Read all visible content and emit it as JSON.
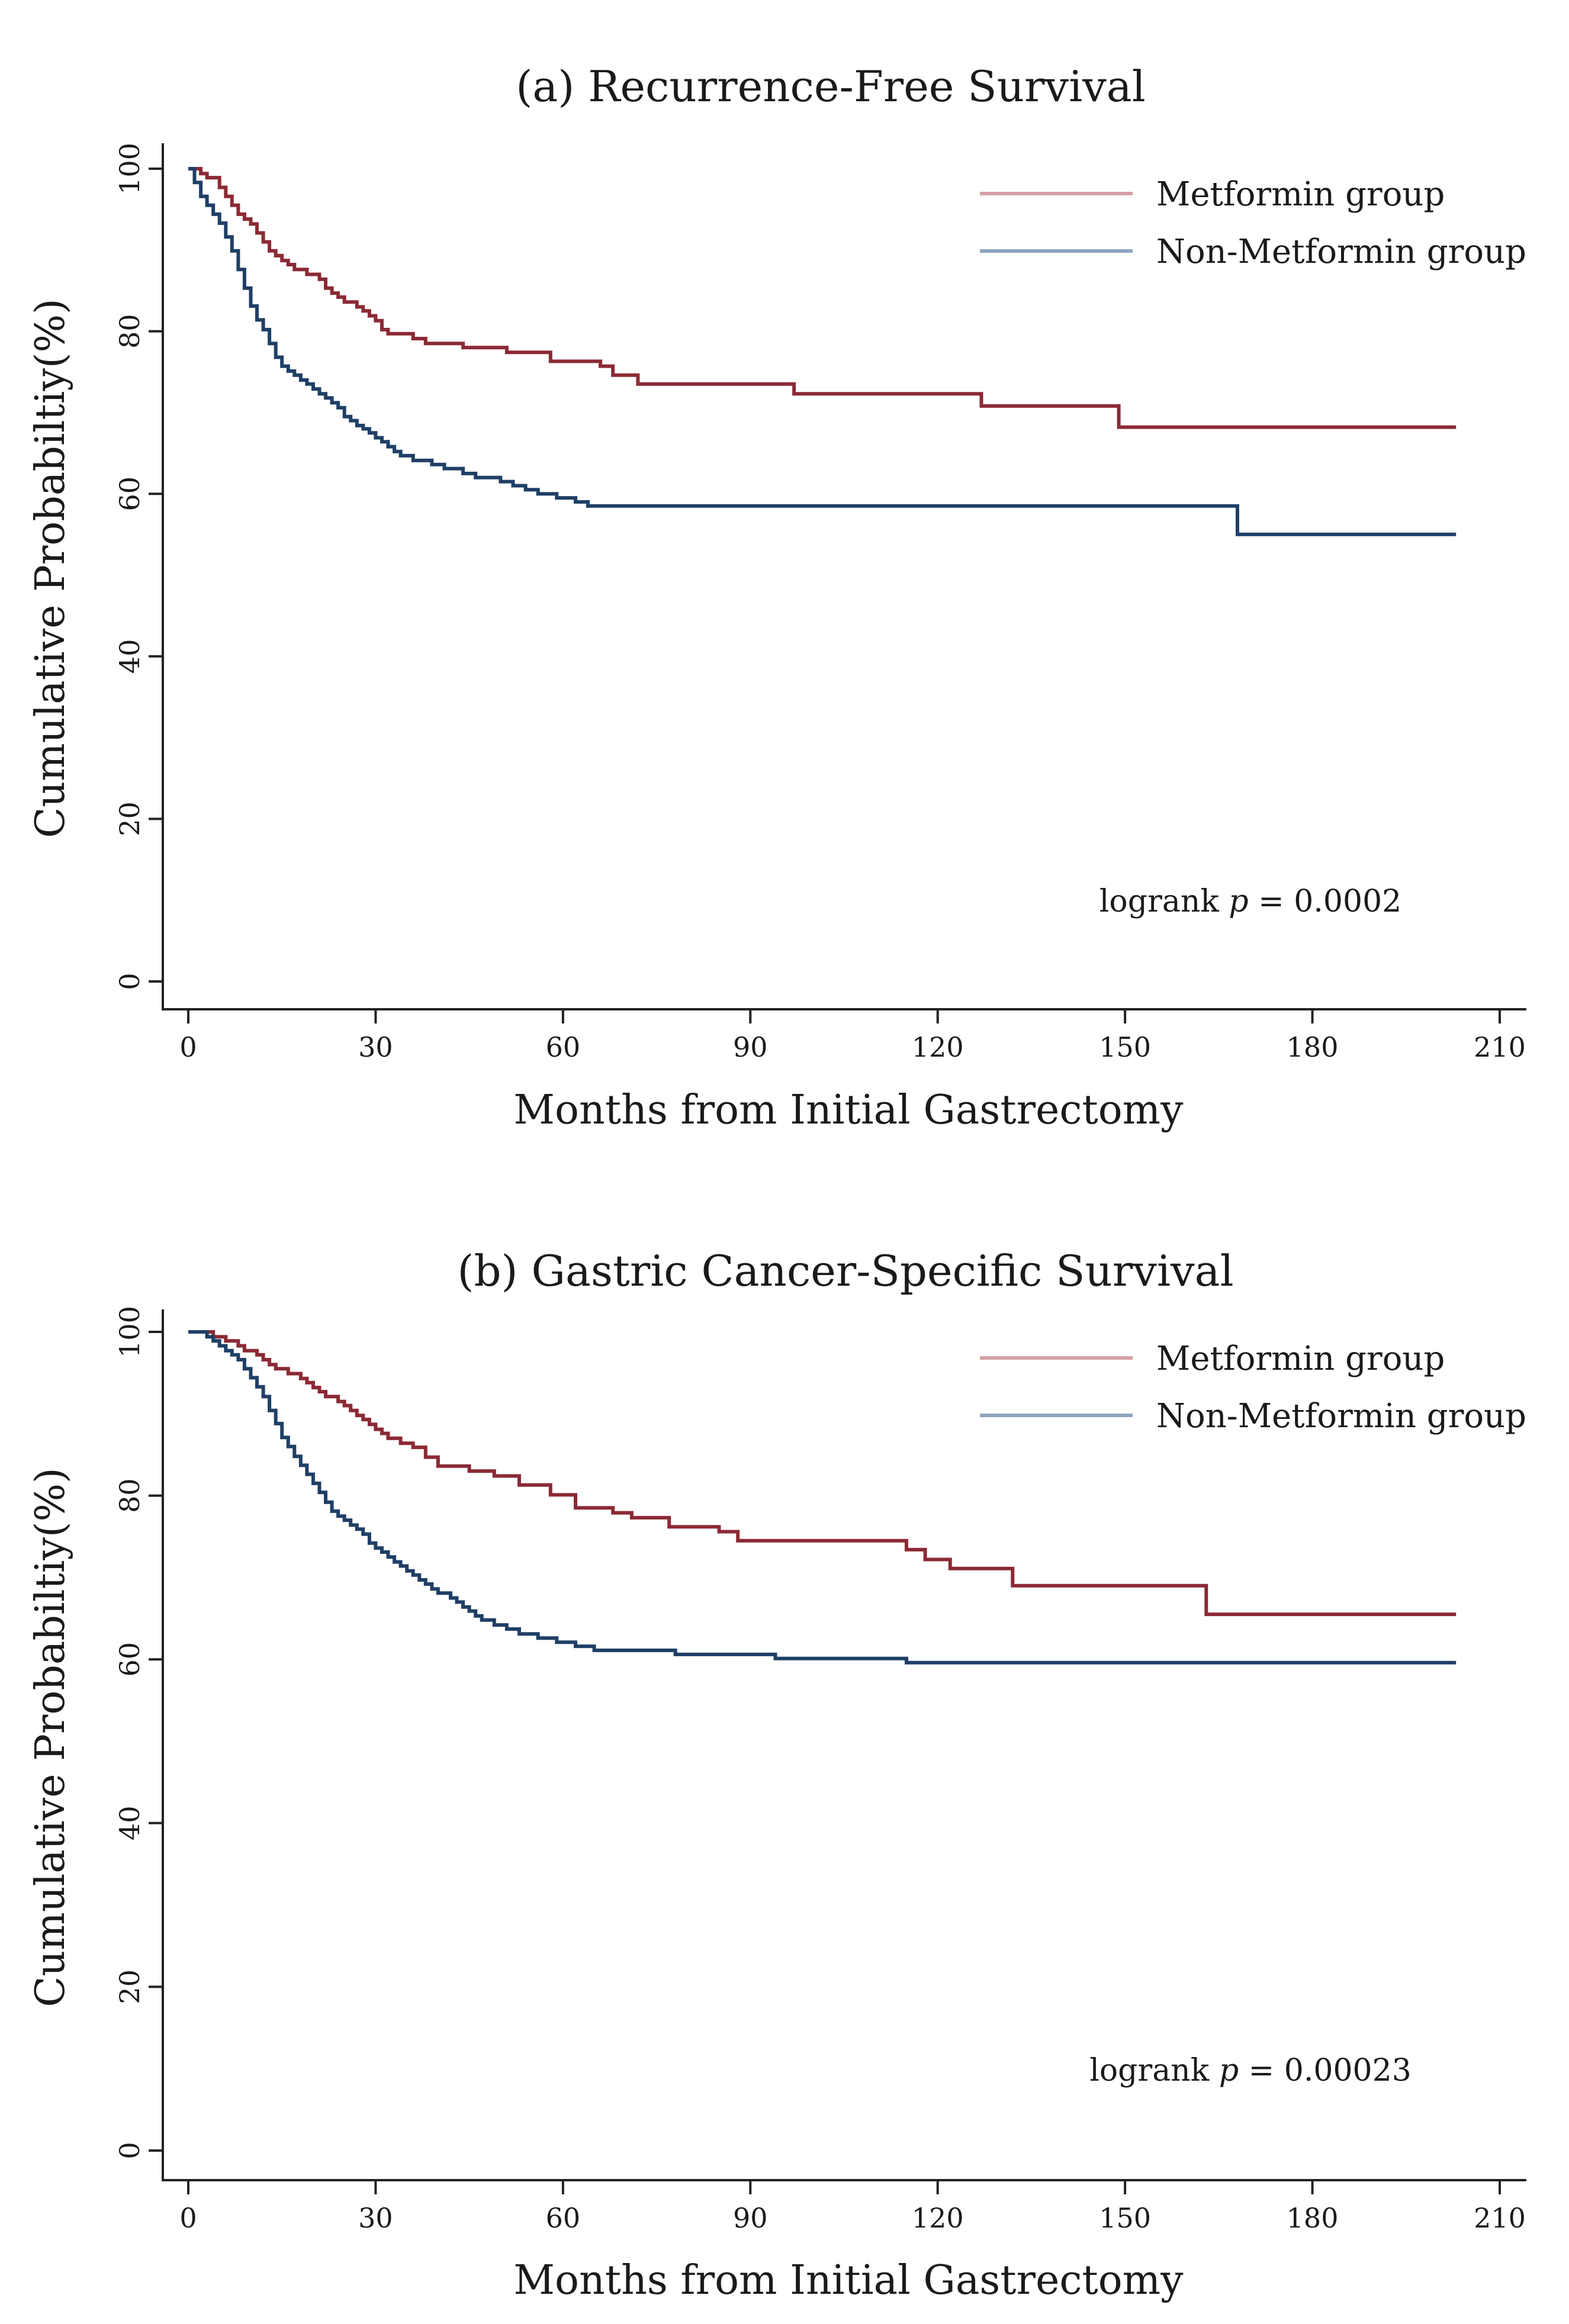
{
  "chart_data": [
    {
      "type": "line",
      "subtype": "kaplan-meier",
      "title": "(a) Recurrence-Free Survival",
      "xlabel": "Months from Initial Gastrectomy",
      "ylabel": "Cumulative Probabiltiy(%)",
      "xlim": [
        0,
        210
      ],
      "ylim": [
        0,
        100
      ],
      "xticks": [
        0,
        30,
        60,
        90,
        120,
        150,
        180,
        210
      ],
      "yticks": [
        0,
        20,
        40,
        60,
        80,
        100
      ],
      "legend_position": "top-right",
      "annotation": {
        "prefix": "logrank ",
        "italic": "p",
        "suffix": " = 0.0002"
      },
      "series": [
        {
          "name": "Metformin group",
          "color": "#8b2a35",
          "legend_color": "#d4a0a6",
          "steps": [
            [
              0,
              100
            ],
            [
              2,
              99.4
            ],
            [
              3,
              98.9
            ],
            [
              5,
              97.7
            ],
            [
              6,
              96.6
            ],
            [
              7,
              95.5
            ],
            [
              8,
              94.4
            ],
            [
              9,
              93.8
            ],
            [
              10,
              93.2
            ],
            [
              11,
              92.1
            ],
            [
              12,
              91
            ],
            [
              13,
              89.9
            ],
            [
              14,
              89.3
            ],
            [
              15,
              88.7
            ],
            [
              16,
              88.2
            ],
            [
              17,
              87.6
            ],
            [
              19,
              87
            ],
            [
              21,
              86.4
            ],
            [
              22,
              85.3
            ],
            [
              23,
              84.7
            ],
            [
              24,
              84.2
            ],
            [
              25,
              83.6
            ],
            [
              27,
              83
            ],
            [
              28,
              82.5
            ],
            [
              29,
              81.9
            ],
            [
              30,
              81.3
            ],
            [
              31,
              80.2
            ],
            [
              32,
              79.7
            ],
            [
              36,
              79.1
            ],
            [
              38,
              78.5
            ],
            [
              44,
              78
            ],
            [
              51,
              77.4
            ],
            [
              58,
              76.3
            ],
            [
              66,
              75.7
            ],
            [
              68,
              74.6
            ],
            [
              72,
              73.5
            ],
            [
              97,
              72.3
            ],
            [
              127,
              70.8
            ],
            [
              149,
              68.2
            ],
            [
              203,
              68.2
            ]
          ]
        },
        {
          "name": "Non-Metformin group",
          "color": "#1f3f66",
          "legend_color": "#8ea4bd",
          "steps": [
            [
              0,
              100
            ],
            [
              1,
              98.3
            ],
            [
              2,
              96.6
            ],
            [
              3,
              95.5
            ],
            [
              4,
              94.4
            ],
            [
              5,
              93.3
            ],
            [
              6,
              91.6
            ],
            [
              7,
              89.9
            ],
            [
              8,
              87.6
            ],
            [
              9,
              85.3
            ],
            [
              10,
              83.1
            ],
            [
              11,
              81.4
            ],
            [
              12,
              80.2
            ],
            [
              13,
              78.5
            ],
            [
              14,
              76.8
            ],
            [
              15,
              75.7
            ],
            [
              16,
              75.1
            ],
            [
              17,
              74.6
            ],
            [
              18,
              74
            ],
            [
              19,
              73.5
            ],
            [
              20,
              72.9
            ],
            [
              21,
              72.3
            ],
            [
              22,
              71.8
            ],
            [
              23,
              71.2
            ],
            [
              24,
              70.6
            ],
            [
              25,
              69.5
            ],
            [
              26,
              69
            ],
            [
              27,
              68.4
            ],
            [
              28,
              68
            ],
            [
              29,
              67.5
            ],
            [
              30,
              66.9
            ],
            [
              31,
              66.4
            ],
            [
              32,
              65.8
            ],
            [
              33,
              65.2
            ],
            [
              34,
              64.7
            ],
            [
              36,
              64.1
            ],
            [
              39,
              63.6
            ],
            [
              41,
              63.1
            ],
            [
              44,
              62.5
            ],
            [
              46,
              62
            ],
            [
              50,
              61.5
            ],
            [
              52,
              61
            ],
            [
              54,
              60.5
            ],
            [
              56,
              60
            ],
            [
              59,
              59.5
            ],
            [
              62,
              59
            ],
            [
              64,
              58.5
            ],
            [
              168,
              58.5
            ],
            [
              168,
              55
            ],
            [
              203,
              55
            ]
          ]
        }
      ]
    },
    {
      "type": "line",
      "subtype": "kaplan-meier",
      "title": "(b) Gastric Cancer-Specific Survival",
      "xlabel": "Months from Initial Gastrectomy",
      "ylabel": "Cumulative Probabiltiy(%)",
      "xlim": [
        0,
        210
      ],
      "ylim": [
        0,
        100
      ],
      "xticks": [
        0,
        30,
        60,
        90,
        120,
        150,
        180,
        210
      ],
      "yticks": [
        0,
        20,
        40,
        60,
        80,
        100
      ],
      "legend_position": "top-right",
      "annotation": {
        "prefix": "logrank ",
        "italic": "p",
        "suffix": " = 0.00023"
      },
      "series": [
        {
          "name": "Metformin group",
          "color": "#8b2a35",
          "legend_color": "#d4a0a6",
          "steps": [
            [
              0,
              100
            ],
            [
              4,
              99.4
            ],
            [
              6,
              98.9
            ],
            [
              8,
              98.3
            ],
            [
              9,
              97.7
            ],
            [
              11,
              97.2
            ],
            [
              12,
              96.6
            ],
            [
              13,
              96
            ],
            [
              14,
              95.5
            ],
            [
              16,
              94.9
            ],
            [
              18,
              94.3
            ],
            [
              19,
              93.8
            ],
            [
              20,
              93.2
            ],
            [
              21,
              92.7
            ],
            [
              22,
              92.1
            ],
            [
              24,
              91.5
            ],
            [
              25,
              91
            ],
            [
              26,
              90.4
            ],
            [
              27,
              89.8
            ],
            [
              28,
              89.3
            ],
            [
              29,
              88.7
            ],
            [
              30,
              88.1
            ],
            [
              31,
              87.6
            ],
            [
              32,
              87
            ],
            [
              34,
              86.4
            ],
            [
              36,
              85.9
            ],
            [
              38,
              84.7
            ],
            [
              40,
              83.6
            ],
            [
              45,
              83
            ],
            [
              49,
              82.4
            ],
            [
              53,
              81.3
            ],
            [
              58,
              80.1
            ],
            [
              62,
              78.5
            ],
            [
              68,
              77.9
            ],
            [
              71,
              77.3
            ],
            [
              77,
              76.2
            ],
            [
              85,
              75.6
            ],
            [
              88,
              74.5
            ],
            [
              115,
              73.4
            ],
            [
              118,
              72.2
            ],
            [
              122,
              71.1
            ],
            [
              132,
              69
            ],
            [
              163,
              65.5
            ],
            [
              203,
              65.5
            ]
          ]
        },
        {
          "name": "Non-Metformin group",
          "color": "#1f3f66",
          "legend_color": "#8ea4bd",
          "steps": [
            [
              0,
              100
            ],
            [
              3,
              99.4
            ],
            [
              4,
              98.9
            ],
            [
              5,
              98.3
            ],
            [
              6,
              97.7
            ],
            [
              7,
              97.2
            ],
            [
              8,
              96.6
            ],
            [
              9,
              95.5
            ],
            [
              10,
              94.4
            ],
            [
              11,
              93.3
            ],
            [
              12,
              92.1
            ],
            [
              13,
              90.4
            ],
            [
              14,
              88.8
            ],
            [
              15,
              87.1
            ],
            [
              16,
              86
            ],
            [
              17,
              84.8
            ],
            [
              18,
              83.7
            ],
            [
              19,
              82.6
            ],
            [
              20,
              81.5
            ],
            [
              21,
              80.4
            ],
            [
              22,
              79.2
            ],
            [
              23,
              78.1
            ],
            [
              24,
              77.5
            ],
            [
              25,
              77
            ],
            [
              26,
              76.4
            ],
            [
              27,
              75.9
            ],
            [
              28,
              75.3
            ],
            [
              29,
              74.2
            ],
            [
              30,
              73.6
            ],
            [
              31,
              73.1
            ],
            [
              32,
              72.5
            ],
            [
              33,
              71.9
            ],
            [
              34,
              71.4
            ],
            [
              35,
              70.8
            ],
            [
              36,
              70.3
            ],
            [
              37,
              69.7
            ],
            [
              38,
              69.2
            ],
            [
              39,
              68.6
            ],
            [
              40,
              68.1
            ],
            [
              42,
              67.5
            ],
            [
              43,
              67
            ],
            [
              44,
              66.4
            ],
            [
              45,
              65.9
            ],
            [
              46,
              65.3
            ],
            [
              47,
              64.8
            ],
            [
              49,
              64.2
            ],
            [
              51,
              63.7
            ],
            [
              53,
              63.1
            ],
            [
              56,
              62.6
            ],
            [
              59,
              62.1
            ],
            [
              62,
              61.6
            ],
            [
              65,
              61.1
            ],
            [
              78,
              60.6
            ],
            [
              94,
              60.1
            ],
            [
              115,
              59.6
            ],
            [
              203,
              59.6
            ]
          ]
        }
      ]
    }
  ]
}
